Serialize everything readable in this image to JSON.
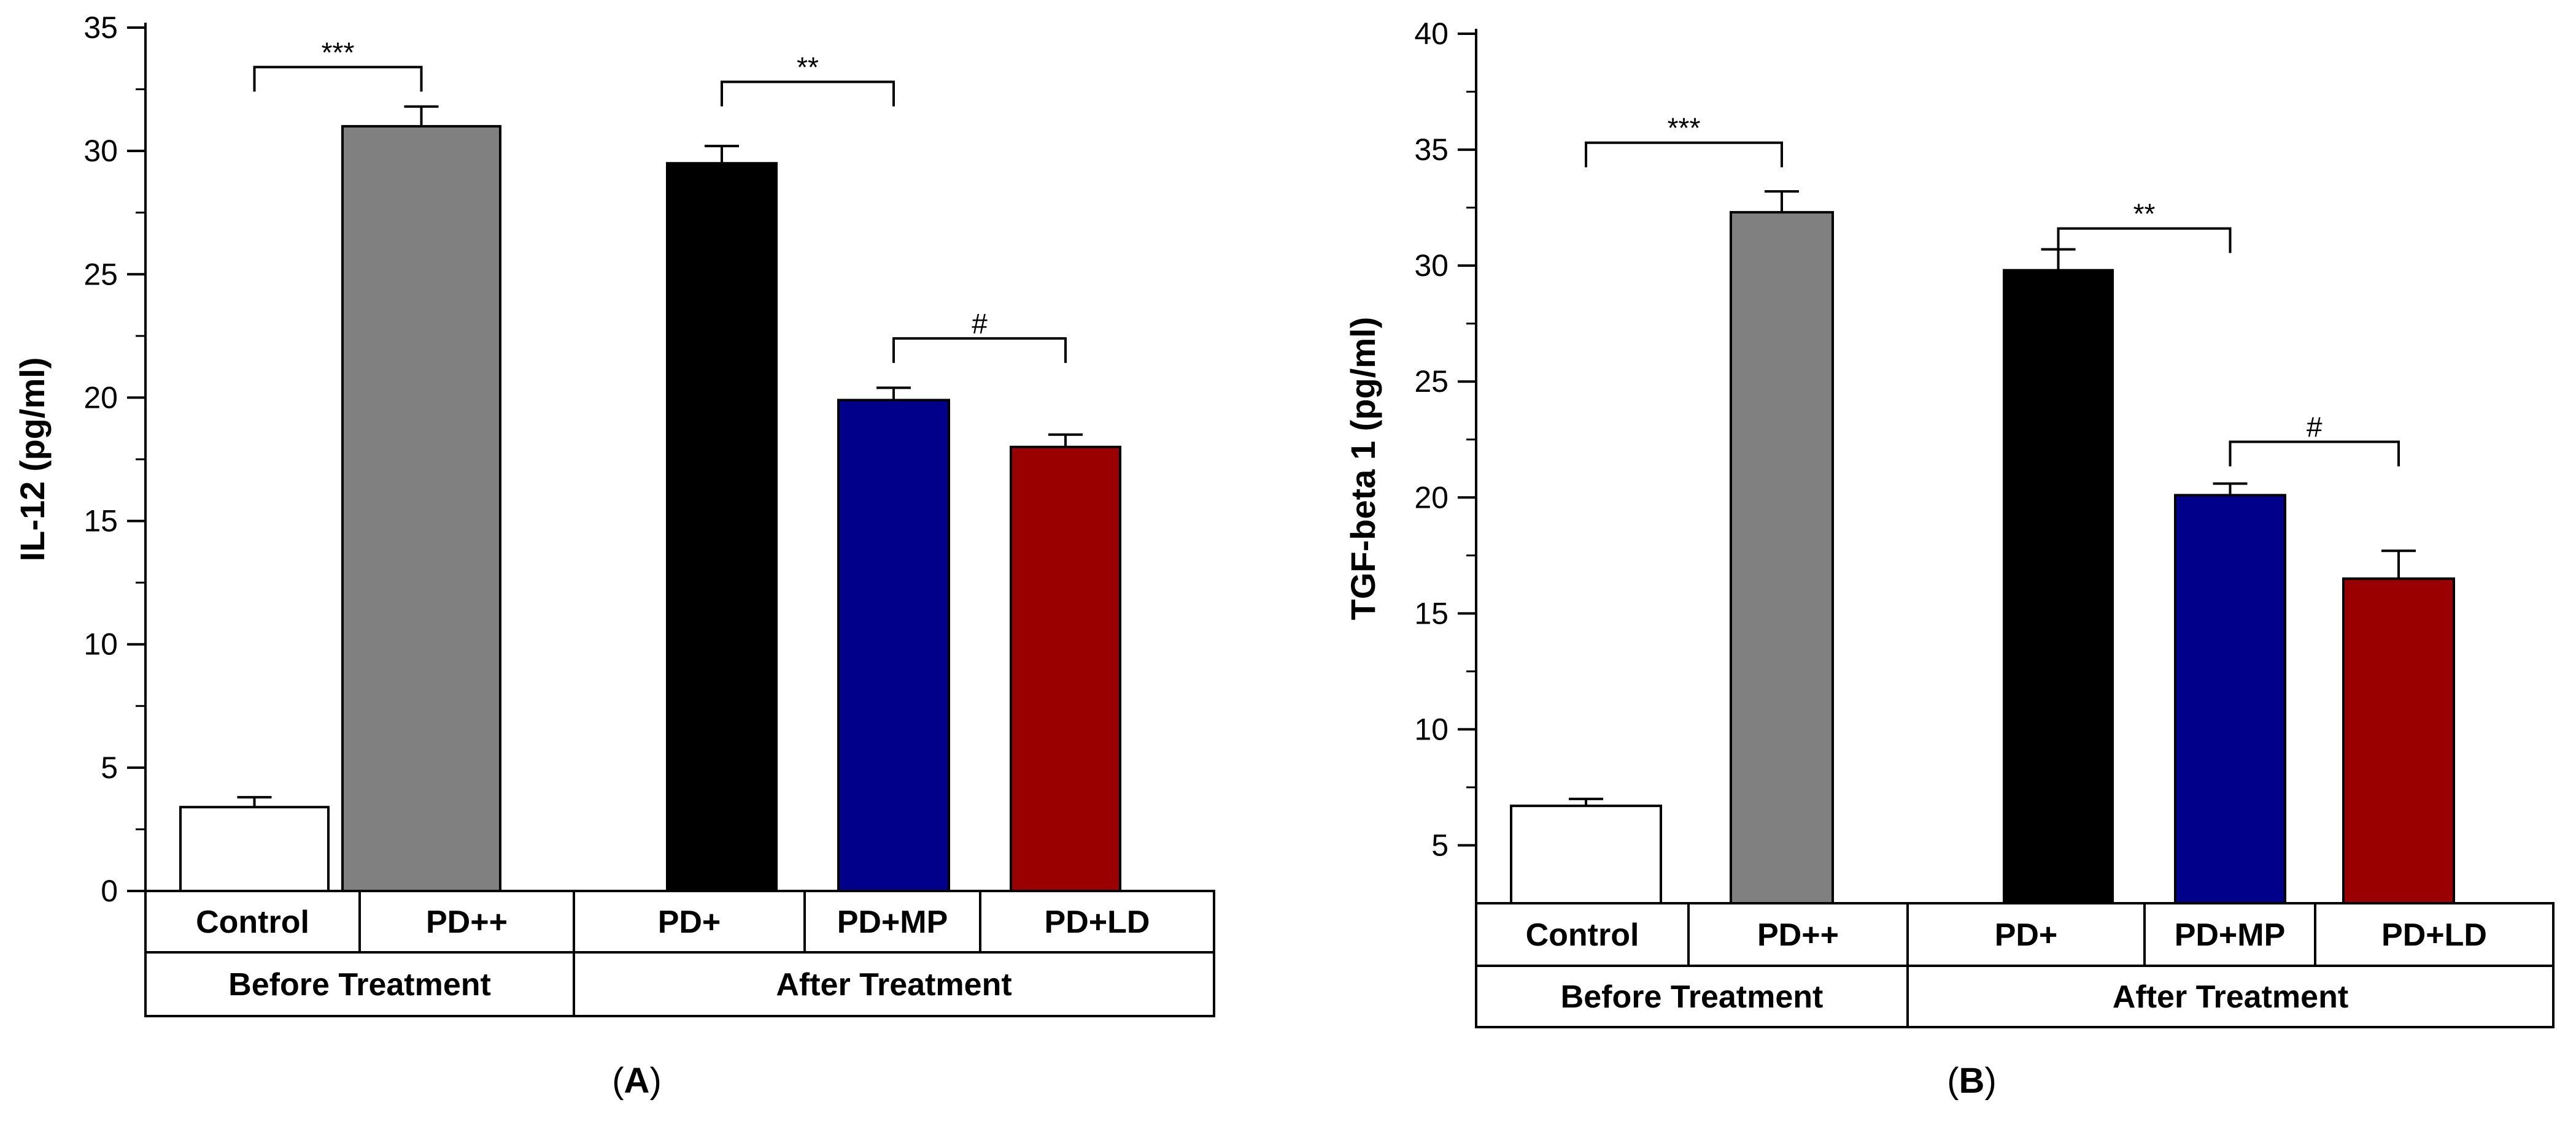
{
  "chart_data": [
    {
      "panel_label": "A",
      "type": "bar",
      "ylabel": "IL-12 (pg/ml)",
      "ylim": [
        0,
        35
      ],
      "yticks": [
        0,
        5,
        10,
        15,
        20,
        25,
        30,
        35
      ],
      "ytick_labels": [
        "0",
        "5",
        "10",
        "15",
        "20",
        "25",
        "30",
        "35"
      ],
      "categories": [
        "Control",
        "PD++",
        "PD+",
        "PD+MP",
        "PD+LD"
      ],
      "values": [
        3.4,
        31.0,
        29.5,
        19.9,
        18.0
      ],
      "errors": [
        0.4,
        0.8,
        0.7,
        0.5,
        0.5
      ],
      "colors": [
        "#ffffff",
        "#808080",
        "#000000",
        "#00008b",
        "#9b0000"
      ],
      "groups": [
        {
          "label": "Before Treatment",
          "categories": [
            0,
            1
          ]
        },
        {
          "label": "After Treatment",
          "categories": [
            2,
            3,
            4
          ]
        }
      ],
      "significance": [
        {
          "from": 0,
          "to": 1,
          "label": "***",
          "level": 33.4
        },
        {
          "from": 2,
          "to": 3,
          "label": "**",
          "level": 32.8
        },
        {
          "from": 3,
          "to": 4,
          "label": "#",
          "level": 22.4
        }
      ]
    },
    {
      "panel_label": "B",
      "type": "bar",
      "ylabel": "TGF-beta 1 (pg/ml)",
      "ylim": [
        2.5,
        40
      ],
      "yticks": [
        5,
        10,
        15,
        20,
        25,
        30,
        35,
        40
      ],
      "ytick_labels": [
        "5",
        "10",
        "15",
        "20",
        "25",
        "30",
        "35",
        "40"
      ],
      "categories": [
        "Control",
        "PD++",
        "PD+",
        "PD+MP",
        "PD+LD"
      ],
      "values": [
        6.7,
        32.3,
        29.8,
        20.1,
        16.5
      ],
      "errors": [
        0.3,
        0.9,
        0.9,
        0.5,
        1.2
      ],
      "colors": [
        "#ffffff",
        "#808080",
        "#000000",
        "#00008b",
        "#9b0000"
      ],
      "groups": [
        {
          "label": "Before Treatment",
          "categories": [
            0,
            1
          ]
        },
        {
          "label": "After Treatment",
          "categories": [
            2,
            3,
            4
          ]
        }
      ],
      "significance": [
        {
          "from": 0,
          "to": 1,
          "label": "***",
          "level": 35.3
        },
        {
          "from": 2,
          "to": 3,
          "label": "**",
          "level": 31.6
        },
        {
          "from": 3,
          "to": 4,
          "label": "#",
          "level": 22.4
        }
      ]
    }
  ]
}
